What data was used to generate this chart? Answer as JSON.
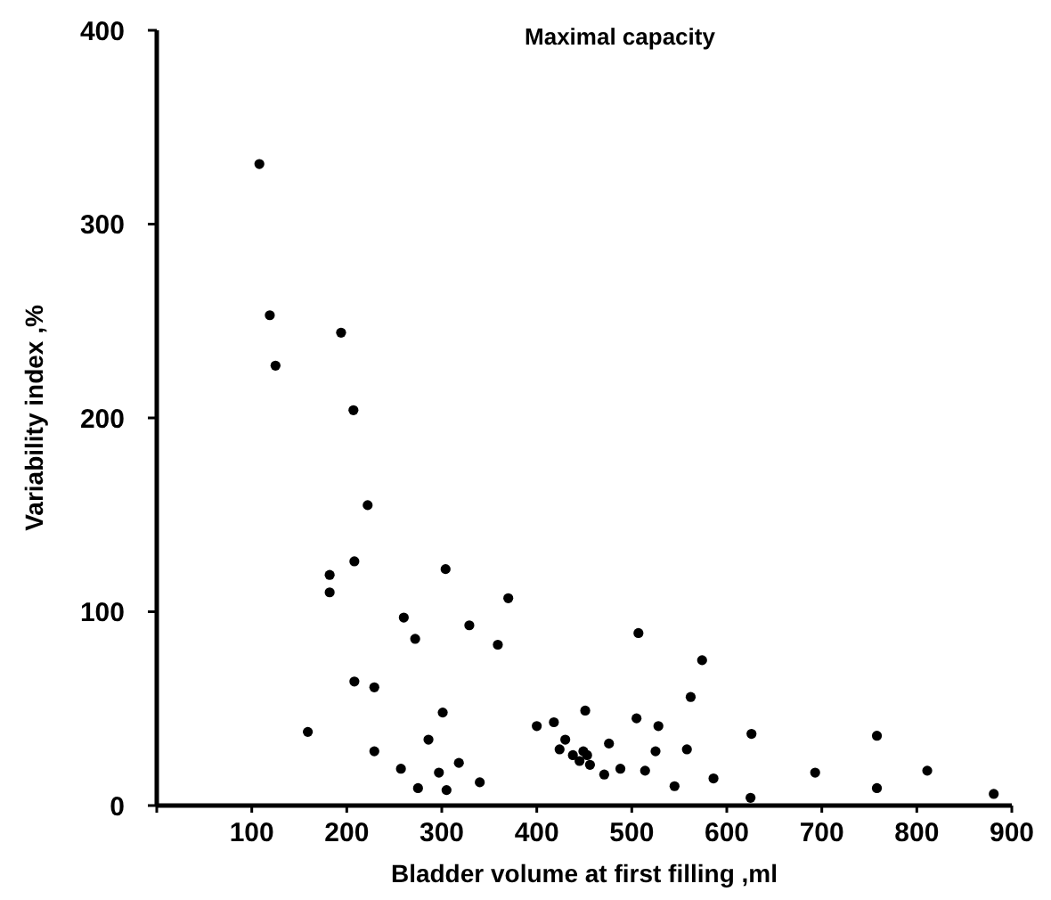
{
  "chart_data": {
    "type": "scatter",
    "title": "Maximal capacity",
    "xlabel": "Bladder volume at first filling ,ml",
    "ylabel": "Variability index ,%",
    "xlim": [
      0,
      900
    ],
    "ylim": [
      0,
      400
    ],
    "xticks": [
      {
        "value": 0,
        "label": null
      },
      100,
      200,
      300,
      400,
      500,
      600,
      700,
      800,
      900
    ],
    "yticks": [
      0,
      100,
      200,
      300,
      400
    ],
    "grid": false,
    "marker": "circle",
    "series": [
      {
        "color": "#000000",
        "x": [
          108,
          119,
          125,
          194,
          207,
          222,
          182,
          182,
          208,
          304,
          370,
          260,
          329,
          272,
          359,
          208,
          229,
          159,
          301,
          286,
          229,
          257,
          275,
          297,
          305,
          318,
          340,
          400,
          418,
          430,
          424,
          438,
          445,
          449,
          453,
          456,
          451,
          476,
          471,
          488,
          507,
          505,
          574,
          562,
          528,
          525,
          558,
          514,
          545,
          586,
          626,
          625,
          693,
          758,
          758,
          811,
          881
        ],
        "values": [
          331,
          253,
          227,
          244,
          204,
          155,
          119,
          110,
          126,
          122,
          107,
          97,
          93,
          86,
          83,
          64,
          61,
          38,
          48,
          34,
          28,
          19,
          9,
          17,
          8,
          22,
          12,
          41,
          43,
          34,
          29,
          26,
          23,
          28,
          26,
          21,
          49,
          32,
          16,
          19,
          89,
          45,
          75,
          56,
          41,
          28,
          29,
          18,
          10,
          14,
          37,
          4,
          17,
          36,
          9,
          18,
          6
        ]
      }
    ]
  }
}
